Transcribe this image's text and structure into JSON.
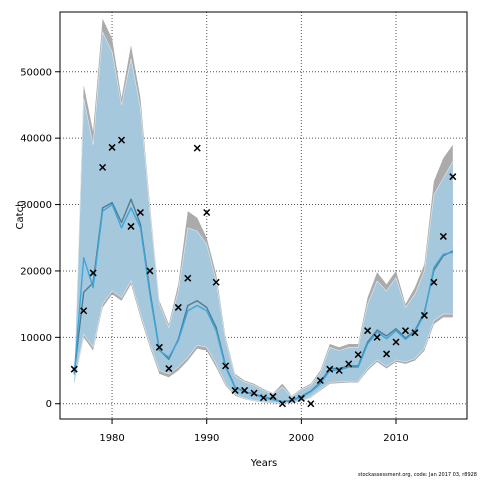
{
  "chart_data": {
    "type": "line",
    "xlabel": "Years",
    "ylabel": "Catch",
    "xlim": [
      1974.5,
      2017.5
    ],
    "ylim": [
      -2300,
      59000
    ],
    "x_ticks": [
      1980,
      1990,
      2000,
      2010
    ],
    "y_ticks": [
      0,
      10000,
      20000,
      30000,
      40000,
      50000
    ],
    "x_tick_labels": [
      "1980",
      "1990",
      "2000",
      "2010"
    ],
    "y_tick_labels": [
      "0",
      "10000",
      "20000",
      "30000",
      "40000",
      "50000"
    ],
    "grid": true,
    "years": [
      1976,
      1977,
      1978,
      1979,
      1980,
      1981,
      1982,
      1983,
      1984,
      1985,
      1986,
      1987,
      1988,
      1989,
      1990,
      1991,
      1992,
      1993,
      1994,
      1995,
      1996,
      1997,
      1998,
      1999,
      2000,
      2001,
      2002,
      2003,
      2004,
      2005,
      2006,
      2007,
      2008,
      2009,
      2010,
      2011,
      2012,
      2013,
      2014,
      2015,
      2016
    ],
    "series": [
      {
        "role": "band",
        "upper": [
          4000,
          48000,
          41000,
          58000,
          55000,
          46000,
          54000,
          46000,
          30000,
          15500,
          12000,
          18000,
          29000,
          28000,
          25000,
          19500,
          10000,
          4500,
          3500,
          3000,
          2200,
          1600,
          3000,
          1200,
          2300,
          3000,
          5000,
          9000,
          8500,
          9000,
          9000,
          16000,
          19800,
          18000,
          20000,
          15000,
          17500,
          21000,
          33500,
          37000,
          39000
        ],
        "lower": [
          2800,
          10000,
          8000,
          14500,
          16500,
          15500,
          18000,
          13000,
          8500,
          4500,
          4000,
          5000,
          6500,
          8300,
          8000,
          5500,
          2700,
          1200,
          700,
          400,
          200,
          100,
          0,
          100,
          400,
          900,
          2000,
          3000,
          3100,
          3200,
          3200,
          5000,
          6300,
          5300,
          6300,
          6000,
          6500,
          8000,
          12000,
          13000,
          13000
        ],
        "color": "#ababab"
      },
      {
        "role": "band",
        "upper": [
          3800,
          46000,
          39000,
          56000,
          53000,
          45000,
          52000,
          44500,
          29000,
          15000,
          11500,
          17000,
          26500,
          26000,
          24000,
          18500,
          9500,
          4200,
          3300,
          2800,
          2000,
          1500,
          2500,
          1100,
          2100,
          2800,
          4600,
          8500,
          8000,
          8500,
          8500,
          15000,
          18500,
          17000,
          19000,
          14500,
          16500,
          20000,
          31500,
          34000,
          36500
        ],
        "lower": [
          3000,
          10500,
          8500,
          15000,
          17000,
          16000,
          18500,
          13500,
          9000,
          5000,
          4500,
          5500,
          7000,
          8800,
          8500,
          6000,
          3000,
          1400,
          800,
          500,
          300,
          200,
          100,
          200,
          500,
          1000,
          2200,
          3200,
          3300,
          3400,
          3400,
          5300,
          6600,
          5600,
          6600,
          6300,
          6800,
          8400,
          12500,
          13500,
          13500
        ],
        "color": "#a6c8dc"
      },
      {
        "role": "model",
        "values": [
          4600,
          16800,
          18200,
          29500,
          30300,
          27300,
          30800,
          27000,
          17000,
          8100,
          6700,
          9700,
          14800,
          15500,
          14500,
          11500,
          5700,
          2500,
          1800,
          1500,
          1000,
          700,
          300,
          500,
          1100,
          1900,
          3200,
          5300,
          5300,
          5700,
          5700,
          9300,
          11100,
          10200,
          11300,
          9900,
          11000,
          13800,
          20100,
          22300,
          23000
        ],
        "color": "#4f7d95"
      },
      {
        "role": "model",
        "values": [
          4400,
          22000,
          17500,
          29000,
          30000,
          26500,
          29500,
          26500,
          16500,
          8000,
          7000,
          9500,
          14000,
          14800,
          14000,
          11000,
          5500,
          2400,
          1700,
          1400,
          900,
          600,
          250,
          450,
          1000,
          1800,
          3000,
          5000,
          5100,
          5500,
          5500,
          9000,
          10800,
          9800,
          11000,
          9700,
          10800,
          13500,
          20500,
          22500,
          22800
        ],
        "color": "#3da6d8"
      },
      {
        "role": "observed",
        "marker": "x",
        "values": [
          5200,
          14000,
          19700,
          35600,
          38600,
          39700,
          26700,
          28800,
          20000,
          8500,
          5300,
          14500,
          18900,
          38500,
          28800,
          18300,
          5700,
          2000,
          2000,
          1600,
          900,
          1100,
          0,
          600,
          800,
          0,
          3500,
          5200,
          5000,
          6000,
          7400,
          11000,
          10000,
          7500,
          9300,
          11000,
          10700,
          13300,
          18300,
          25200,
          34200
        ],
        "color": "#000000"
      }
    ]
  },
  "footer": {
    "text": "stockassessment.org, code: Jan 2017 03, r8928"
  }
}
